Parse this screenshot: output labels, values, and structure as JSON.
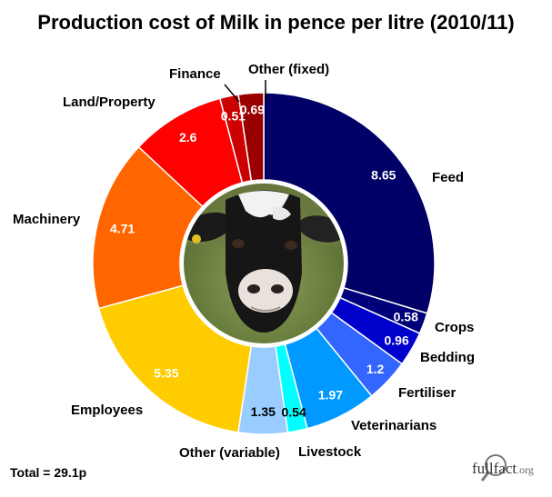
{
  "chart_data": {
    "type": "pie",
    "title": "Production cost of Milk in pence per litre (2010/11)",
    "slices": [
      {
        "label": "Feed",
        "value": 8.65,
        "color": "#000066"
      },
      {
        "label": "Crops",
        "value": 0.58,
        "color": "#00007a"
      },
      {
        "label": "Bedding",
        "value": 0.96,
        "color": "#0000cc"
      },
      {
        "label": "Fertiliser",
        "value": 1.2,
        "color": "#3366ff"
      },
      {
        "label": "Veterinarians",
        "value": 1.97,
        "color": "#0099ff"
      },
      {
        "label": "Livestock",
        "value": 0.54,
        "color": "#00ffff"
      },
      {
        "label": "Other (variable)",
        "value": 1.35,
        "color": "#99ccff"
      },
      {
        "label": "Employees",
        "value": 5.35,
        "color": "#ffcc00"
      },
      {
        "label": "Machinery",
        "value": 4.71,
        "color": "#ff6600"
      },
      {
        "label": "Land/Property",
        "value": 2.6,
        "color": "#ff0000"
      },
      {
        "label": "Finance",
        "value": 0.51,
        "color": "#cc0000"
      },
      {
        "label": "Other (fixed)",
        "value": 0.69,
        "color": "#990000"
      }
    ],
    "total_label": "Total = 29.1p"
  },
  "logo": {
    "brand": "full",
    "fact": "fact",
    "org": ".org"
  }
}
